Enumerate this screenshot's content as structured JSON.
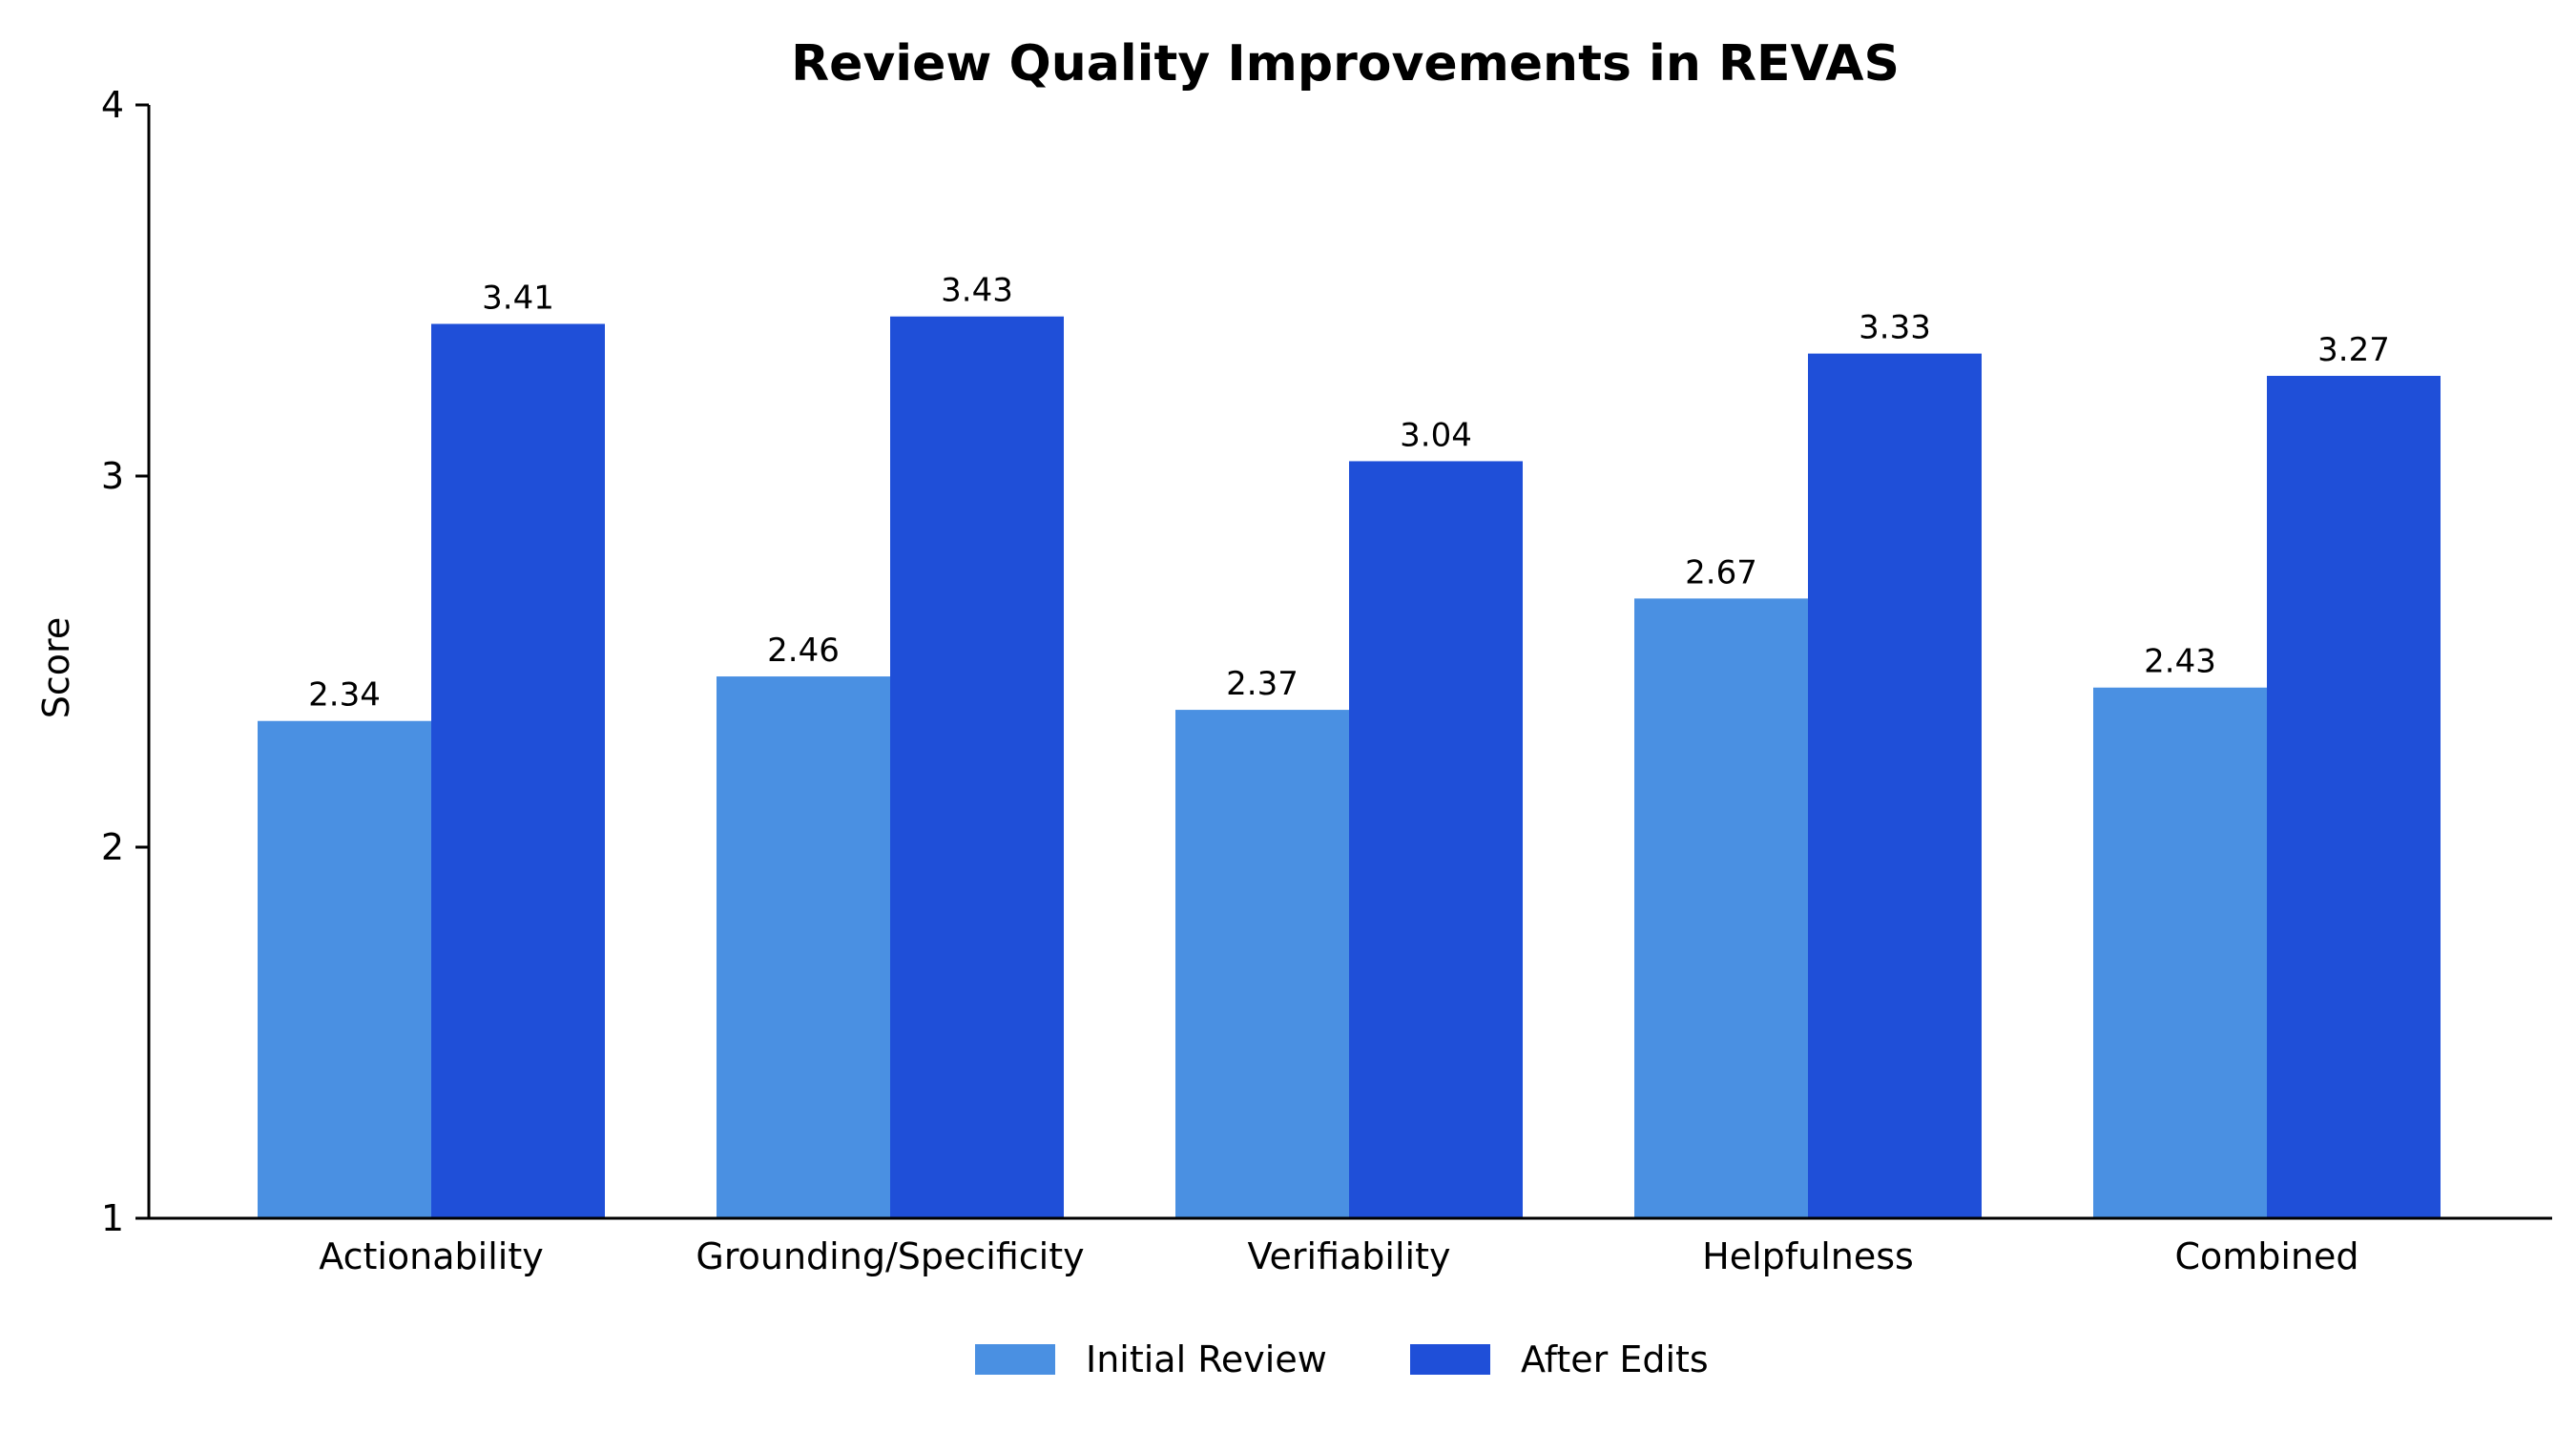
{
  "chart_data": {
    "type": "bar",
    "title": "Review Quality Improvements in REVAS",
    "xlabel": "",
    "ylabel": "Score",
    "ylim": [
      1,
      4
    ],
    "yticks": [
      "1",
      "2",
      "3",
      "4"
    ],
    "categories": [
      "Actionability",
      "Grounding/Specificity",
      "Verifiability",
      "Helpfulness",
      "Combined"
    ],
    "series": [
      {
        "name": "Initial Review",
        "color": "#4A90E2",
        "values": [
          2.34,
          2.46,
          2.37,
          2.67,
          2.43
        ],
        "labels": [
          "2.34",
          "2.46",
          "2.37",
          "2.67",
          "2.43"
        ]
      },
      {
        "name": "After Edits",
        "color": "#1F4FD8",
        "values": [
          3.41,
          3.43,
          3.04,
          3.33,
          3.27
        ],
        "labels": [
          "3.41",
          "3.43",
          "3.04",
          "3.33",
          "3.27"
        ]
      }
    ],
    "grid": false,
    "legend_position": "bottom-center"
  }
}
